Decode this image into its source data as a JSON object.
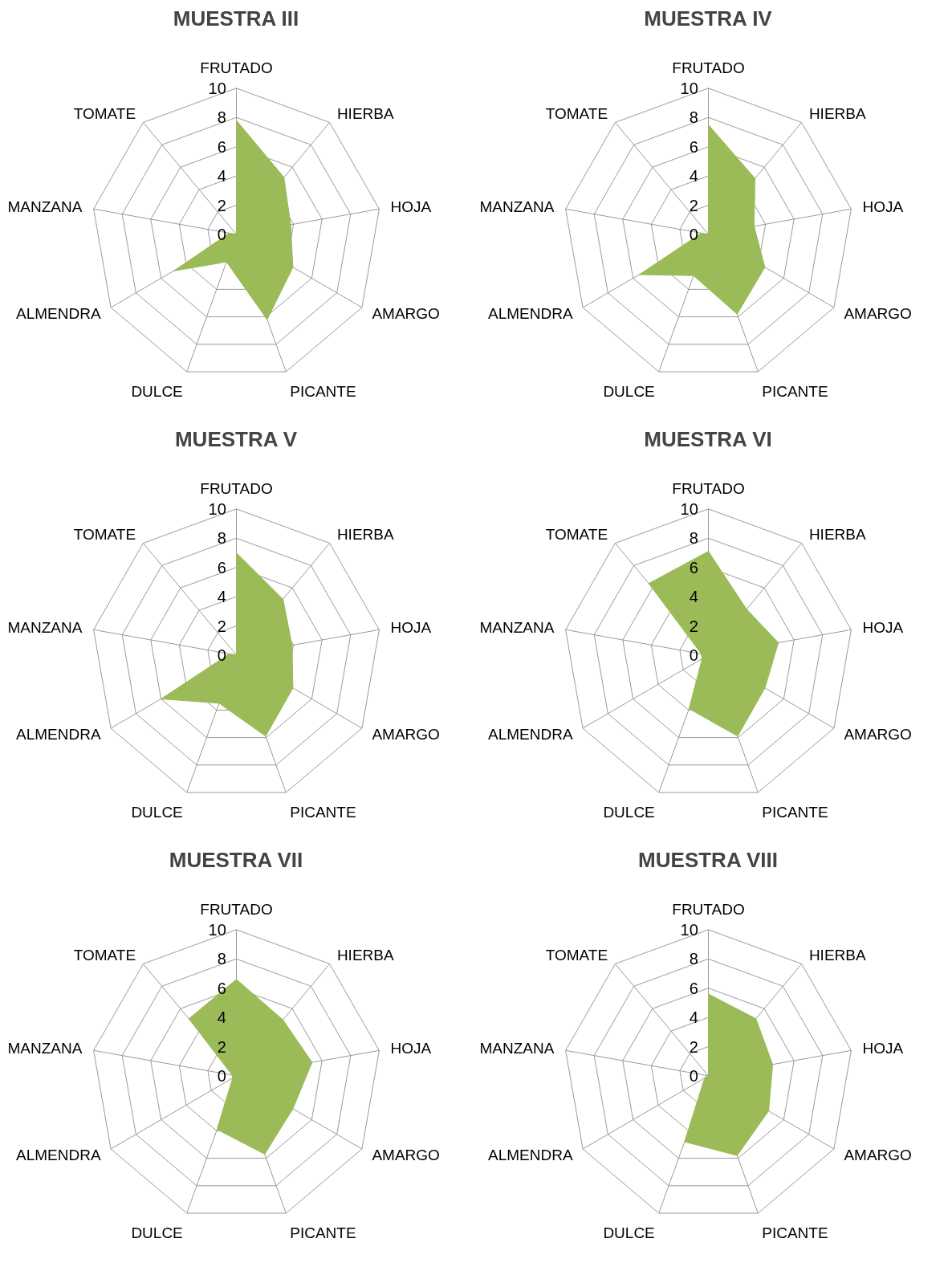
{
  "chart_data": [
    {
      "type": "radar",
      "title": "MUESTRA III",
      "categories": [
        "FRUTADO",
        "HIERBA",
        "HOJA",
        "AMARGO",
        "PICANTE",
        "DULCE",
        "ALMENDRA",
        "MANZANA",
        "TOMATE"
      ],
      "series": [
        {
          "color": "#9bbb59",
          "values": [
            7.8,
            5.1,
            3.8,
            4.5,
            6.2,
            2,
            5,
            0.5,
            0
          ]
        }
      ],
      "ylim": [
        0,
        10
      ],
      "yticks": [
        0,
        2,
        4,
        6,
        8,
        10
      ],
      "grid": true
    },
    {
      "type": "radar",
      "title": "MUESTRA IV",
      "categories": [
        "FRUTADO",
        "HIERBA",
        "HOJA",
        "AMARGO",
        "PICANTE",
        "DULCE",
        "ALMENDRA",
        "MANZANA",
        "TOMATE"
      ],
      "series": [
        {
          "color": "#9bbb59",
          "values": [
            7.5,
            5,
            3.2,
            4.5,
            5.8,
            3,
            5.5,
            0.5,
            0
          ]
        }
      ],
      "ylim": [
        0,
        10
      ],
      "yticks": [
        0,
        2,
        4,
        6,
        8,
        10
      ],
      "grid": true
    },
    {
      "type": "radar",
      "title": "MUESTRA V",
      "categories": [
        "FRUTADO",
        "HIERBA",
        "HOJA",
        "AMARGO",
        "PICANTE",
        "DULCE",
        "ALMENDRA",
        "MANZANA",
        "TOMATE"
      ],
      "series": [
        {
          "color": "#9bbb59",
          "values": [
            7,
            5,
            3.9,
            4.5,
            5.9,
            3.5,
            6,
            0.5,
            0
          ]
        }
      ],
      "ylim": [
        0,
        10
      ],
      "yticks": [
        0,
        2,
        4,
        6,
        8,
        10
      ],
      "grid": true
    },
    {
      "type": "radar",
      "title": "MUESTRA VI",
      "categories": [
        "FRUTADO",
        "HIERBA",
        "HOJA",
        "AMARGO",
        "PICANTE",
        "DULCE",
        "ALMENDRA",
        "MANZANA",
        "TOMATE"
      ],
      "series": [
        {
          "color": "#9bbb59",
          "values": [
            7.1,
            4.1,
            4.9,
            4.5,
            5.9,
            3.9,
            0.5,
            0.5,
            6.4
          ]
        }
      ],
      "ylim": [
        0,
        10
      ],
      "yticks": [
        0,
        2,
        4,
        6,
        8,
        10
      ],
      "grid": true
    },
    {
      "type": "radar",
      "title": "MUESTRA VII",
      "categories": [
        "FRUTADO",
        "HIERBA",
        "HOJA",
        "AMARGO",
        "PICANTE",
        "DULCE",
        "ALMENDRA",
        "MANZANA",
        "TOMATE"
      ],
      "series": [
        {
          "color": "#9bbb59",
          "values": [
            6.6,
            5,
            5.3,
            4.5,
            5.7,
            3.9,
            0.3,
            0.3,
            5.1
          ]
        }
      ],
      "ylim": [
        0,
        10
      ],
      "yticks": [
        0,
        2,
        4,
        6,
        8,
        10
      ],
      "grid": true
    },
    {
      "type": "radar",
      "title": "MUESTRA VIII",
      "categories": [
        "FRUTADO",
        "HIERBA",
        "HOJA",
        "AMARGO",
        "PICANTE",
        "DULCE",
        "ALMENDRA",
        "MANZANA",
        "TOMATE"
      ],
      "series": [
        {
          "color": "#9bbb59",
          "values": [
            5.6,
            5.1,
            4.5,
            4.8,
            5.8,
            4.8,
            0.3,
            0,
            0
          ]
        }
      ],
      "ylim": [
        0,
        10
      ],
      "yticks": [
        0,
        2,
        4,
        6,
        8,
        10
      ],
      "grid": true
    }
  ]
}
